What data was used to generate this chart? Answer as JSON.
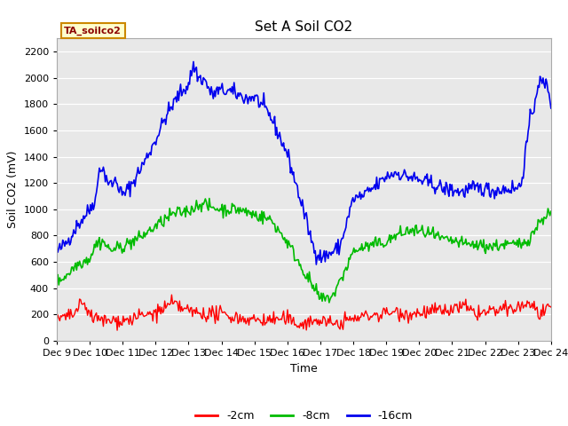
{
  "title": "Set A Soil CO2",
  "ylabel": "Soil CO2 (mV)",
  "xlabel": "Time",
  "ylim": [
    0,
    2300
  ],
  "yticks": [
    0,
    200,
    400,
    600,
    800,
    1000,
    1200,
    1400,
    1600,
    1800,
    2000,
    2200
  ],
  "annotation_text": "TA_soilco2",
  "annotation_bg": "#FFFFCC",
  "annotation_border": "#CC8800",
  "line_colors": {
    "2cm": "#FF0000",
    "8cm": "#00BB00",
    "16cm": "#0000EE"
  },
  "legend_labels": [
    "-2cm",
    "-8cm",
    "-16cm"
  ],
  "plot_bg": "#E8E8E8",
  "xtick_labels": [
    "Dec 9",
    "Dec 10",
    "Dec 11",
    "Dec 12",
    "Dec 13",
    "Dec 14",
    "Dec 15",
    "Dec 16",
    "Dec 17",
    "Dec 18",
    "Dec 19",
    "Dec 20",
    "Dec 21",
    "Dec 22",
    "Dec 23",
    "Dec 24"
  ],
  "seed": 42,
  "n_days": 15,
  "keypoints_16cm": [
    [
      0,
      670
    ],
    [
      0.3,
      750
    ],
    [
      0.6,
      870
    ],
    [
      1.0,
      1000
    ],
    [
      1.2,
      1100
    ],
    [
      1.3,
      1340
    ],
    [
      1.5,
      1250
    ],
    [
      1.6,
      1180
    ],
    [
      1.8,
      1220
    ],
    [
      2.0,
      1100
    ],
    [
      2.3,
      1200
    ],
    [
      2.7,
      1380
    ],
    [
      3.0,
      1530
    ],
    [
      3.3,
      1700
    ],
    [
      3.7,
      1870
    ],
    [
      4.0,
      1950
    ],
    [
      4.15,
      2100
    ],
    [
      4.3,
      2000
    ],
    [
      4.5,
      1980
    ],
    [
      4.7,
      1870
    ],
    [
      4.9,
      1900
    ],
    [
      5.2,
      1900
    ],
    [
      5.5,
      1870
    ],
    [
      5.8,
      1840
    ],
    [
      6.0,
      1860
    ],
    [
      6.5,
      1700
    ],
    [
      7.0,
      1420
    ],
    [
      7.5,
      980
    ],
    [
      7.8,
      700
    ],
    [
      8.0,
      640
    ],
    [
      8.1,
      640
    ],
    [
      8.2,
      650
    ],
    [
      8.4,
      680
    ],
    [
      8.6,
      720
    ],
    [
      9.0,
      1080
    ],
    [
      9.3,
      1100
    ],
    [
      9.5,
      1140
    ],
    [
      9.8,
      1200
    ],
    [
      10.0,
      1250
    ],
    [
      10.3,
      1280
    ],
    [
      10.5,
      1260
    ],
    [
      10.8,
      1240
    ],
    [
      11.0,
      1220
    ],
    [
      11.3,
      1200
    ],
    [
      11.5,
      1180
    ],
    [
      11.8,
      1150
    ],
    [
      12.0,
      1150
    ],
    [
      12.3,
      1130
    ],
    [
      12.5,
      1150
    ],
    [
      12.8,
      1160
    ],
    [
      13.0,
      1160
    ],
    [
      13.2,
      1140
    ],
    [
      13.5,
      1150
    ],
    [
      13.8,
      1160
    ],
    [
      14.0,
      1160
    ],
    [
      14.1,
      1200
    ],
    [
      14.2,
      1380
    ],
    [
      14.35,
      1650
    ],
    [
      14.5,
      1800
    ],
    [
      14.6,
      1960
    ],
    [
      14.7,
      1960
    ],
    [
      14.8,
      1950
    ],
    [
      14.9,
      1940
    ],
    [
      15.0,
      1810
    ]
  ],
  "keypoints_8cm": [
    [
      0,
      450
    ],
    [
      0.3,
      500
    ],
    [
      0.6,
      580
    ],
    [
      1.0,
      630
    ],
    [
      1.2,
      740
    ],
    [
      1.4,
      760
    ],
    [
      1.6,
      690
    ],
    [
      1.8,
      700
    ],
    [
      2.0,
      720
    ],
    [
      2.5,
      780
    ],
    [
      3.0,
      870
    ],
    [
      3.5,
      960
    ],
    [
      4.0,
      990
    ],
    [
      4.2,
      1020
    ],
    [
      4.4,
      1050
    ],
    [
      4.6,
      1020
    ],
    [
      5.0,
      1000
    ],
    [
      5.5,
      1000
    ],
    [
      6.0,
      960
    ],
    [
      6.5,
      920
    ],
    [
      7.0,
      750
    ],
    [
      7.5,
      530
    ],
    [
      7.8,
      400
    ],
    [
      8.0,
      320
    ],
    [
      8.1,
      315
    ],
    [
      8.2,
      320
    ],
    [
      8.4,
      350
    ],
    [
      8.6,
      450
    ],
    [
      9.0,
      680
    ],
    [
      9.3,
      710
    ],
    [
      9.5,
      720
    ],
    [
      9.8,
      740
    ],
    [
      10.0,
      750
    ],
    [
      10.3,
      800
    ],
    [
      10.5,
      820
    ],
    [
      10.8,
      840
    ],
    [
      11.0,
      830
    ],
    [
      11.3,
      820
    ],
    [
      11.5,
      790
    ],
    [
      11.8,
      760
    ],
    [
      12.0,
      760
    ],
    [
      12.3,
      740
    ],
    [
      12.5,
      730
    ],
    [
      12.8,
      730
    ],
    [
      13.0,
      720
    ],
    [
      13.3,
      720
    ],
    [
      13.5,
      730
    ],
    [
      13.8,
      730
    ],
    [
      14.0,
      730
    ],
    [
      14.2,
      750
    ],
    [
      14.4,
      800
    ],
    [
      14.6,
      880
    ],
    [
      14.8,
      950
    ],
    [
      15.0,
      970
    ]
  ],
  "keypoints_2cm": [
    [
      0,
      168
    ],
    [
      0.3,
      175
    ],
    [
      0.5,
      200
    ],
    [
      0.7,
      260
    ],
    [
      0.8,
      280
    ],
    [
      0.9,
      260
    ],
    [
      1.0,
      200
    ],
    [
      1.2,
      165
    ],
    [
      1.5,
      150
    ],
    [
      1.8,
      155
    ],
    [
      2.0,
      155
    ],
    [
      2.3,
      165
    ],
    [
      2.5,
      185
    ],
    [
      2.8,
      200
    ],
    [
      3.0,
      210
    ],
    [
      3.2,
      240
    ],
    [
      3.4,
      265
    ],
    [
      3.5,
      285
    ],
    [
      3.6,
      270
    ],
    [
      3.8,
      250
    ],
    [
      4.0,
      225
    ],
    [
      4.2,
      215
    ],
    [
      4.5,
      205
    ],
    [
      5.0,
      200
    ],
    [
      5.3,
      185
    ],
    [
      5.5,
      175
    ],
    [
      5.8,
      165
    ],
    [
      6.0,
      160
    ],
    [
      6.3,
      155
    ],
    [
      6.5,
      160
    ],
    [
      6.8,
      165
    ],
    [
      7.0,
      165
    ],
    [
      7.2,
      130
    ],
    [
      7.5,
      135
    ],
    [
      7.8,
      145
    ],
    [
      8.0,
      160
    ],
    [
      8.2,
      140
    ],
    [
      8.3,
      125
    ],
    [
      8.5,
      130
    ],
    [
      8.6,
      140
    ],
    [
      8.8,
      155
    ],
    [
      9.0,
      165
    ],
    [
      9.3,
      185
    ],
    [
      9.5,
      195
    ],
    [
      9.8,
      200
    ],
    [
      10.0,
      210
    ],
    [
      10.3,
      220
    ],
    [
      10.5,
      215
    ],
    [
      10.8,
      200
    ],
    [
      11.0,
      215
    ],
    [
      11.3,
      220
    ],
    [
      11.5,
      230
    ],
    [
      11.8,
      220
    ],
    [
      12.0,
      240
    ],
    [
      12.2,
      255
    ],
    [
      12.4,
      260
    ],
    [
      12.5,
      230
    ],
    [
      12.7,
      210
    ],
    [
      12.9,
      215
    ],
    [
      13.0,
      210
    ],
    [
      13.2,
      225
    ],
    [
      13.5,
      230
    ],
    [
      13.8,
      240
    ],
    [
      14.0,
      250
    ],
    [
      14.2,
      270
    ],
    [
      14.3,
      290
    ],
    [
      14.5,
      250
    ],
    [
      14.7,
      200
    ],
    [
      14.9,
      220
    ],
    [
      15.0,
      240
    ]
  ]
}
